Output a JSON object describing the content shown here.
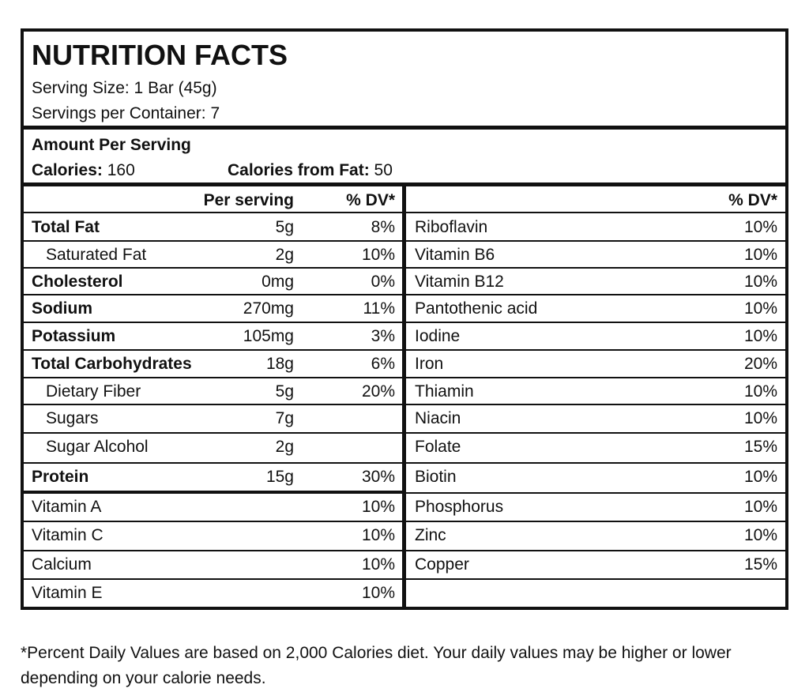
{
  "header": {
    "title": "NUTRITION FACTS",
    "serving_size": "Serving Size: 1 Bar (45g)",
    "servings_per_container": "Servings per Container: 7"
  },
  "amount": {
    "heading": "Amount Per Serving",
    "calories_label": "Calories:",
    "calories": "160",
    "fat_calories_label": "Calories from Fat:",
    "fat_calories": "50"
  },
  "left": {
    "columns": [
      "Per serving",
      "% DV*"
    ],
    "rows": [
      {
        "name": "Total Fat",
        "amount": "5g",
        "dv": "8%"
      },
      {
        "name": "Saturated Fat",
        "amount": "2g",
        "dv": "10%"
      },
      {
        "name": "Cholesterol",
        "amount": "0mg",
        "dv": "0%"
      },
      {
        "name": "Sodium",
        "amount": "270mg",
        "dv": "11%"
      },
      {
        "name": "Potassium",
        "amount": "105mg",
        "dv": "3%"
      },
      {
        "name": "Total Carbohydrates",
        "amount": "18g",
        "dv": "6%"
      },
      {
        "name": "Dietary Fiber",
        "amount": "5g",
        "dv": "20%"
      },
      {
        "name": "Sugars",
        "amount": "7g"
      },
      {
        "name": "Sugar Alcohol",
        "amount": "2g"
      },
      {
        "name": "Protein",
        "amount": "15g",
        "dv": "30%"
      }
    ],
    "vitamins": [
      {
        "name": "Vitamin A",
        "dv": "10%"
      },
      {
        "name": "Vitamin C",
        "dv": "10%"
      },
      {
        "name": "Calcium",
        "dv": "10%"
      },
      {
        "name": "Vitamin E",
        "dv": "10%"
      }
    ]
  },
  "right": {
    "column": "% DV*",
    "rows": [
      {
        "name": "Riboflavin",
        "dv": "10%"
      },
      {
        "name": "Vitamin B6",
        "dv": "10%"
      },
      {
        "name": "Vitamin B12",
        "dv": "10%"
      },
      {
        "name": "Pantothenic acid",
        "dv": "10%"
      },
      {
        "name": "Iodine",
        "dv": "10%"
      },
      {
        "name": "Iron",
        "dv": "20%"
      },
      {
        "name": "Thiamin",
        "dv": "10%"
      },
      {
        "name": "Niacin",
        "dv": "10%"
      },
      {
        "name": "Folate",
        "dv": "15%"
      },
      {
        "name": "Biotin",
        "dv": "10%"
      },
      {
        "name": "Phosphorus",
        "dv": "10%"
      },
      {
        "name": "Zinc",
        "dv": "10%"
      },
      {
        "name": "Copper",
        "dv": "15%"
      }
    ]
  },
  "footnote": "*Percent Daily Values are based on 2,000 Calories diet. Your daily values may be higher or lower depending on your calorie needs."
}
